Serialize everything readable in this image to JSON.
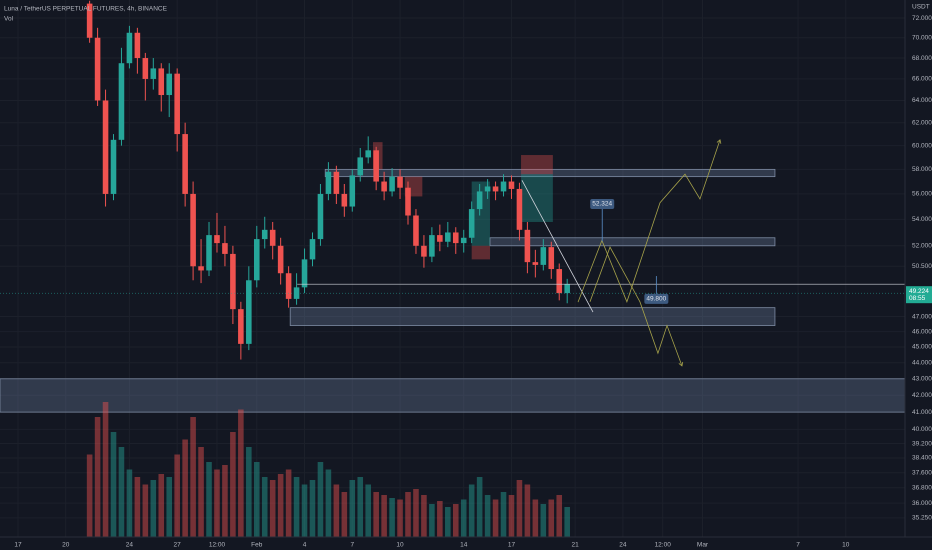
{
  "chart_data": {
    "type": "candlestick",
    "title": "Luna / TetherUS PERPETUAL FUTURES, 4h, BINANCE",
    "indicator": "Vol",
    "currency": "USDT",
    "countdown": "08:55",
    "log_scale": true,
    "grid": true,
    "up_color": "#26a69a",
    "down_color": "#ef5350",
    "x": [
      4.5,
      5,
      5.5,
      6,
      6.5,
      7,
      7.5,
      8,
      8.5,
      9,
      9.5,
      10,
      10.5,
      11,
      11.5,
      12,
      12.5,
      13,
      13.5,
      14,
      14.5,
      15,
      15.5,
      16,
      16.5,
      17,
      17.5,
      18,
      18.5,
      19,
      19.5,
      20,
      20.5,
      21,
      21.5,
      22,
      22.5,
      23,
      23.5,
      24,
      24.5,
      25,
      25.5,
      26,
      26.5,
      27,
      27.5,
      28,
      28.5,
      29,
      29.5,
      30,
      30.5,
      31,
      31.5,
      32,
      32.5,
      33,
      33.5,
      34,
      34.5
    ],
    "open": [
      73.5,
      70,
      64,
      56,
      60.5,
      67.5,
      70.5,
      68,
      66,
      67,
      64.5,
      66.5,
      61,
      56,
      50.5,
      50.2,
      52.8,
      52.2,
      51.4,
      47.5,
      45.2,
      49.5,
      52.5,
      53.2,
      52,
      50,
      48.2,
      49,
      51,
      52.5,
      56,
      57.8,
      56,
      55,
      57.5,
      59,
      59.6,
      57,
      56.2,
      57.4,
      56.5,
      54.3,
      52,
      51.2,
      52.8,
      52.3,
      53,
      52.2,
      52.6,
      54.8,
      56.2,
      56.6,
      56.2,
      57,
      56.4,
      53.2,
      50.8,
      50.6,
      51.9,
      50.3,
      48.6
    ],
    "high": [
      73.8,
      71,
      65,
      61,
      69,
      71.2,
      71,
      68.5,
      68,
      67.5,
      67.5,
      67,
      62,
      57,
      52.5,
      53.8,
      54.5,
      53.5,
      52,
      48,
      50.5,
      53.5,
      54.2,
      53.8,
      52.6,
      50.5,
      50,
      51.8,
      53,
      56.8,
      58.6,
      58.3,
      56.8,
      58,
      59.8,
      60.8,
      59.9,
      57.8,
      58.1,
      58,
      57,
      54.8,
      52.8,
      53.4,
      53.6,
      53.8,
      53.4,
      53.2,
      55.4,
      56.8,
      57.2,
      57,
      57.6,
      57.5,
      56.9,
      53.8,
      51.7,
      52.5,
      52.3,
      50.7,
      49.6
    ],
    "low": [
      69.5,
      63.5,
      55,
      55.5,
      60,
      67,
      66.5,
      64,
      65,
      63,
      62.5,
      59.5,
      55,
      49.5,
      49.3,
      49.8,
      51.5,
      50.5,
      46.5,
      44.2,
      44.8,
      49,
      51.8,
      51,
      49.2,
      47.6,
      47.8,
      48.6,
      50.5,
      52,
      55.5,
      55.2,
      54.2,
      54.6,
      57,
      58.5,
      56.3,
      55.5,
      55.8,
      55.6,
      53.6,
      51.4,
      50.4,
      50.8,
      51.6,
      51.9,
      51.4,
      51.5,
      52.2,
      54.3,
      55.6,
      55.5,
      55.8,
      55.6,
      52.4,
      50,
      49.7,
      50.2,
      49.6,
      48.1,
      47.9
    ],
    "close": [
      70,
      64,
      56,
      60.5,
      67.5,
      70.5,
      68,
      66,
      67,
      64.5,
      66.5,
      61,
      56,
      50.5,
      50.2,
      52.8,
      52.2,
      51.4,
      47.5,
      45.2,
      49.5,
      52.5,
      53.2,
      52,
      50,
      48.2,
      49,
      51,
      52.5,
      56,
      57.8,
      56,
      55,
      57.5,
      59,
      59.6,
      57,
      56.2,
      57.4,
      56.5,
      54.3,
      52,
      51.2,
      52.8,
      52.3,
      53,
      52.2,
      52.6,
      54.8,
      56.2,
      56.6,
      56.2,
      57,
      56.4,
      53.2,
      50.8,
      50.6,
      51.9,
      50.3,
      48.6,
      49.224
    ],
    "volume": [
      55,
      80,
      90,
      70,
      60,
      45,
      40,
      35,
      38,
      42,
      40,
      55,
      65,
      80,
      60,
      50,
      45,
      48,
      70,
      85,
      60,
      50,
      40,
      38,
      42,
      45,
      40,
      35,
      38,
      50,
      45,
      35,
      30,
      38,
      40,
      35,
      30,
      28,
      26,
      25,
      30,
      32,
      28,
      22,
      24,
      20,
      22,
      25,
      35,
      40,
      28,
      25,
      30,
      28,
      38,
      35,
      25,
      22,
      25,
      28,
      20
    ],
    "xlim": [
      -1.13,
      55.72
    ],
    "ylim": [
      34.3,
      73.88
    ],
    "xticks": [
      {
        "value": 0,
        "label": "17"
      },
      {
        "value": 3,
        "label": "20"
      },
      {
        "value": 7,
        "label": "24"
      },
      {
        "value": 10,
        "label": "27"
      },
      {
        "value": 12.5,
        "label": "12:00"
      },
      {
        "value": 15,
        "label": "Feb"
      },
      {
        "value": 18,
        "label": "4"
      },
      {
        "value": 21,
        "label": "7"
      },
      {
        "value": 24,
        "label": "10"
      },
      {
        "value": 28,
        "label": "14"
      },
      {
        "value": 31,
        "label": "17"
      },
      {
        "value": 35,
        "label": "21"
      },
      {
        "value": 38,
        "label": "24"
      },
      {
        "value": 40.5,
        "label": "12:00"
      },
      {
        "value": 43,
        "label": "Mar"
      },
      {
        "value": 49,
        "label": "7"
      },
      {
        "value": 52,
        "label": "10"
      }
    ],
    "yticks": [
      {
        "value": 72,
        "label": "72.000"
      },
      {
        "value": 70,
        "label": "70.000"
      },
      {
        "value": 68,
        "label": "68.000"
      },
      {
        "value": 66,
        "label": "66.000"
      },
      {
        "value": 64,
        "label": "64.000"
      },
      {
        "value": 62,
        "label": "62.000"
      },
      {
        "value": 60,
        "label": "60.000"
      },
      {
        "value": 58,
        "label": "58.000"
      },
      {
        "value": 56,
        "label": "56.000"
      },
      {
        "value": 54,
        "label": "54.000"
      },
      {
        "value": 52,
        "label": "52.000"
      },
      {
        "value": 50.5,
        "label": "50.500"
      },
      {
        "value": 47,
        "label": "47.000"
      },
      {
        "value": 46,
        "label": "46.000"
      },
      {
        "value": 45,
        "label": "45.000"
      },
      {
        "value": 44,
        "label": "44.000"
      },
      {
        "value": 43,
        "label": "43.000"
      },
      {
        "value": 42,
        "label": "42.000"
      },
      {
        "value": 41,
        "label": "41.000"
      },
      {
        "value": 40,
        "label": "40.000"
      },
      {
        "value": 39.2,
        "label": "39.200"
      },
      {
        "value": 38.4,
        "label": "38.400"
      },
      {
        "value": 37.6,
        "label": "37.600"
      },
      {
        "value": 36.8,
        "label": "36.800"
      },
      {
        "value": 36,
        "label": "36.000"
      },
      {
        "value": 35.25,
        "label": "35.250"
      }
    ],
    "zones": [
      {
        "from": 19.3,
        "to": 47.55,
        "top": 58.0,
        "bottom": 57.4
      },
      {
        "from": 29.65,
        "to": 47.55,
        "top": 52.6,
        "bottom": 52.0
      },
      {
        "from": 17.1,
        "to": 47.55,
        "top": 47.6,
        "bottom": 46.4
      },
      {
        "top": 43.0,
        "bottom": 41.0
      }
    ],
    "positions": [
      {
        "from": 22.3,
        "to": 22.9,
        "top": 60.3,
        "bottom": 58.0,
        "color": "#ef5350"
      },
      {
        "from": 24.3,
        "to": 25.4,
        "top": 57.4,
        "bottom": 55.8,
        "color": "#ef5350"
      },
      {
        "from": 28.5,
        "to": 29.65,
        "top": 57.0,
        "bottom": 52.0,
        "color": "#26a69a"
      },
      {
        "from": 28.5,
        "to": 29.65,
        "top": 52.0,
        "bottom": 51.0,
        "color": "#ef5350"
      },
      {
        "from": 31.6,
        "to": 33.6,
        "top": 59.2,
        "bottom": 57.6,
        "color": "#ef5350"
      },
      {
        "from": 31.6,
        "to": 33.6,
        "top": 57.6,
        "bottom": 53.8,
        "color": "#26a69a"
      }
    ],
    "trendline": {
      "days": [
        31.66,
        36.12
      ],
      "prices": [
        57.1,
        47.3
      ],
      "color": "#d1d4dc"
    },
    "projections": [
      {
        "days": [
          35.18,
          36.68,
          38.25,
          40.33,
          41.9,
          42.84,
          44.1
        ],
        "prices": [
          47.98,
          52.4,
          48.0,
          55.3,
          57.6,
          55.6,
          60.5
        ],
        "color": "#a6a24a"
      },
      {
        "days": [
          35.93,
          37.19,
          39.07,
          40.2,
          40.77,
          41.71
        ],
        "prices": [
          48.0,
          51.9,
          48.0,
          44.6,
          46.4,
          43.8
        ],
        "color": "#a6a24a"
      }
    ],
    "annotations": [
      {
        "label": "52.324",
        "day": 36.7,
        "price": 52.324,
        "label_price": 55.2
      },
      {
        "label": "49.800",
        "day": 40.1,
        "price": 49.8,
        "label_price": 48.2
      }
    ]
  }
}
